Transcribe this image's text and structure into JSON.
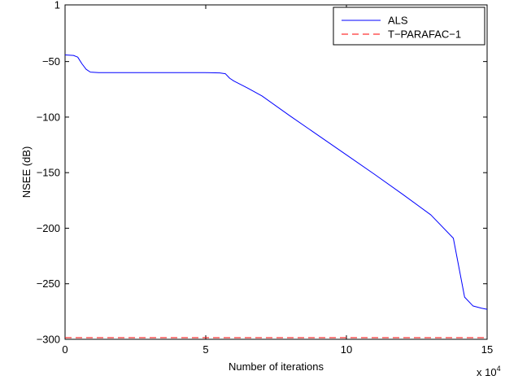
{
  "chart_data": {
    "type": "line",
    "xlabel": "Number of iterations",
    "ylabel": "NSEE (dB)",
    "x_multiplier_label": "x 10",
    "x_multiplier_exponent": "4",
    "xlim": [
      0,
      15
    ],
    "ylim": [
      -300,
      1
    ],
    "xticks": [
      0,
      5,
      10,
      15
    ],
    "yticks": [
      -300,
      -250,
      -200,
      -150,
      -100,
      -50,
      1
    ],
    "grid": false,
    "legend_position": "top-right",
    "series": [
      {
        "name": "ALS",
        "color": "#0000ff",
        "dash": "solid",
        "x": [
          0,
          0.3,
          0.45,
          0.6,
          0.75,
          0.9,
          1.2,
          2.0,
          3.0,
          4.0,
          5.0,
          5.5,
          5.7,
          5.85,
          6.0,
          6.5,
          7.0,
          8.0,
          9.0,
          10.0,
          11.0,
          12.0,
          13.0,
          13.8,
          14.2,
          14.5,
          14.8,
          15.0
        ],
        "y": [
          -44,
          -44.5,
          -46,
          -52,
          -57,
          -59.5,
          -60,
          -60,
          -60,
          -60,
          -60,
          -60.2,
          -61,
          -65,
          -67.5,
          -74,
          -81,
          -99,
          -116.5,
          -134,
          -151.5,
          -169.5,
          -188,
          -209,
          -262,
          -270,
          -272,
          -273
        ]
      },
      {
        "name": "T−PARAFAC−1",
        "color": "#ff0000",
        "dash": "dashed",
        "x": [
          0,
          15
        ],
        "y": [
          -298.5,
          -298.5
        ]
      }
    ]
  }
}
